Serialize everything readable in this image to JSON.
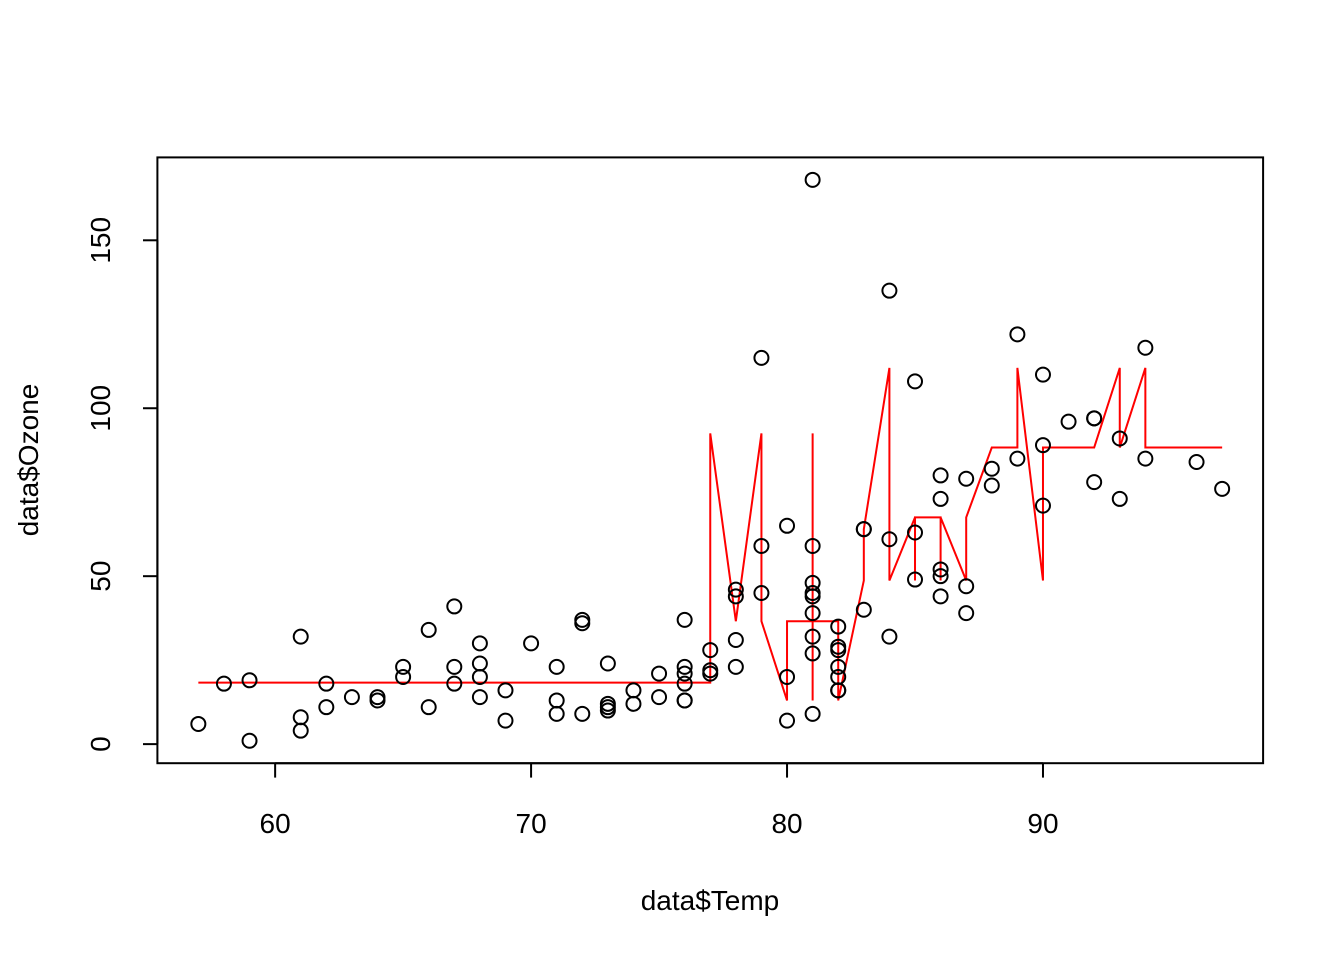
{
  "chart_data": {
    "type": "scatter",
    "title": "",
    "xlabel": "data$Temp",
    "ylabel": "data$Ozone",
    "xlim": [
      55.4,
      98.6
    ],
    "ylim": [
      -5.68,
      174.68
    ],
    "xticks": [
      60,
      70,
      80,
      90
    ],
    "yticks": [
      0,
      50,
      100,
      150
    ],
    "grid": false,
    "legend": "none",
    "colors": {
      "points": "#000000",
      "fit": "#ff0000",
      "frame": "#000000"
    },
    "points": [
      [
        57,
        6
      ],
      [
        58,
        18
      ],
      [
        59,
        1
      ],
      [
        59,
        19
      ],
      [
        61,
        32
      ],
      [
        61,
        8
      ],
      [
        61,
        4
      ],
      [
        62,
        11
      ],
      [
        62,
        18
      ],
      [
        63,
        14
      ],
      [
        64,
        13
      ],
      [
        64,
        14
      ],
      [
        65,
        20
      ],
      [
        65,
        23
      ],
      [
        66,
        34
      ],
      [
        66,
        11
      ],
      [
        67,
        41
      ],
      [
        67,
        23
      ],
      [
        67,
        18
      ],
      [
        68,
        30
      ],
      [
        68,
        24
      ],
      [
        68,
        20
      ],
      [
        68,
        14
      ],
      [
        69,
        16
      ],
      [
        69,
        7
      ],
      [
        70,
        30
      ],
      [
        71,
        23
      ],
      [
        71,
        13
      ],
      [
        71,
        9
      ],
      [
        72,
        37
      ],
      [
        72,
        36
      ],
      [
        72,
        9
      ],
      [
        73,
        24
      ],
      [
        73,
        12
      ],
      [
        73,
        11
      ],
      [
        73,
        10
      ],
      [
        74,
        16
      ],
      [
        74,
        12
      ],
      [
        75,
        21
      ],
      [
        75,
        14
      ],
      [
        76,
        37
      ],
      [
        76,
        23
      ],
      [
        76,
        21
      ],
      [
        76,
        18
      ],
      [
        76,
        13
      ],
      [
        76,
        13
      ],
      [
        77,
        28
      ],
      [
        77,
        22
      ],
      [
        77,
        21
      ],
      [
        78,
        46
      ],
      [
        78,
        44
      ],
      [
        78,
        31
      ],
      [
        78,
        23
      ],
      [
        79,
        115
      ],
      [
        79,
        59
      ],
      [
        79,
        45
      ],
      [
        80,
        65
      ],
      [
        80,
        20
      ],
      [
        80,
        7
      ],
      [
        81,
        168
      ],
      [
        81,
        59
      ],
      [
        81,
        48
      ],
      [
        81,
        45
      ],
      [
        81,
        44
      ],
      [
        81,
        39
      ],
      [
        81,
        32
      ],
      [
        81,
        27
      ],
      [
        81,
        9
      ],
      [
        82,
        35
      ],
      [
        82,
        29
      ],
      [
        82,
        28
      ],
      [
        82,
        23
      ],
      [
        82,
        20
      ],
      [
        82,
        16
      ],
      [
        82,
        16
      ],
      [
        83,
        64
      ],
      [
        83,
        64
      ],
      [
        83,
        40
      ],
      [
        84,
        135
      ],
      [
        84,
        61
      ],
      [
        84,
        32
      ],
      [
        85,
        108
      ],
      [
        85,
        63
      ],
      [
        85,
        49
      ],
      [
        86,
        80
      ],
      [
        86,
        73
      ],
      [
        86,
        52
      ],
      [
        86,
        50
      ],
      [
        86,
        44
      ],
      [
        87,
        79
      ],
      [
        87,
        47
      ],
      [
        87,
        39
      ],
      [
        88,
        82
      ],
      [
        88,
        77
      ],
      [
        89,
        122
      ],
      [
        89,
        85
      ],
      [
        90,
        110
      ],
      [
        90,
        89
      ],
      [
        90,
        71
      ],
      [
        91,
        96
      ],
      [
        92,
        97
      ],
      [
        92,
        97
      ],
      [
        92,
        78
      ],
      [
        93,
        91
      ],
      [
        93,
        73
      ],
      [
        94,
        118
      ],
      [
        94,
        85
      ],
      [
        96,
        84
      ],
      [
        97,
        76
      ]
    ],
    "fit_line": [
      [
        57,
        18.3
      ],
      [
        77,
        18.3
      ],
      [
        77,
        92.5
      ],
      [
        78,
        36.6
      ],
      [
        79,
        92.5
      ],
      [
        79,
        36.6
      ],
      [
        80,
        13
      ],
      [
        80,
        36.6
      ],
      [
        81,
        36.6
      ],
      [
        81,
        92.5
      ],
      [
        81,
        13
      ],
      [
        81,
        36.6
      ],
      [
        82,
        36.6
      ],
      [
        82,
        13
      ],
      [
        83,
        48.7
      ],
      [
        83,
        64
      ],
      [
        84,
        112
      ],
      [
        84,
        48.7
      ],
      [
        85,
        67.5
      ],
      [
        85,
        48.7
      ],
      [
        85,
        67.5
      ],
      [
        86,
        67.5
      ],
      [
        86,
        48.7
      ],
      [
        86,
        67.5
      ],
      [
        87,
        48.7
      ],
      [
        87,
        67.5
      ],
      [
        88,
        88.3
      ],
      [
        89,
        88.3
      ],
      [
        89,
        112
      ],
      [
        90,
        48.7
      ],
      [
        90,
        88.3
      ],
      [
        92,
        88.3
      ],
      [
        93,
        112
      ],
      [
        93,
        88.3
      ],
      [
        94,
        112
      ],
      [
        94,
        88.3
      ],
      [
        97,
        88.3
      ]
    ]
  }
}
